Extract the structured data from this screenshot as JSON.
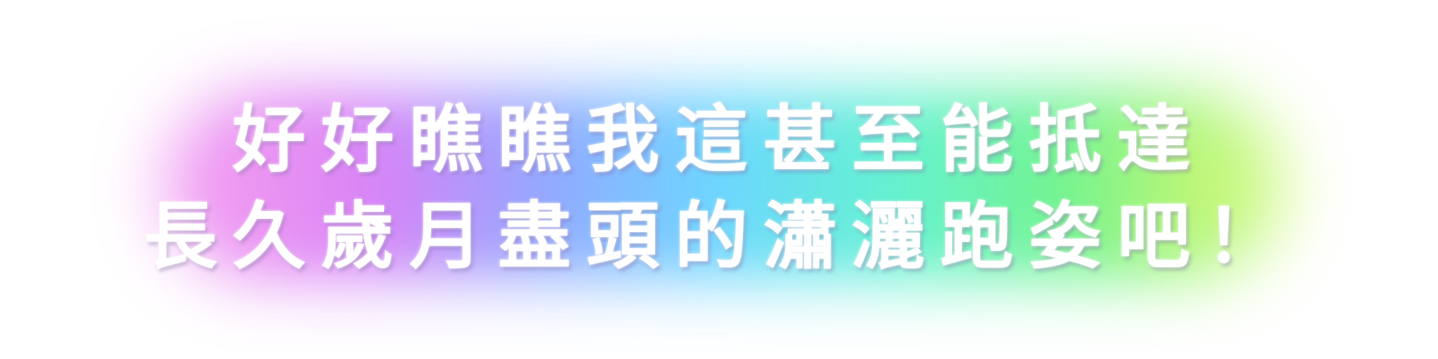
{
  "banner": {
    "line1": "好好瞧瞧我這甚至能抵達",
    "line2": "長久歲月盡頭的瀟灑跑姿吧！"
  },
  "colors": {
    "background": "#ffffff",
    "text": "#ffffff",
    "glow_gradient": [
      "#f49af0",
      "#d77ef6",
      "#8fa6ff",
      "#67d6ff",
      "#5ff2cf",
      "#6ff38a",
      "#d8f86a"
    ]
  }
}
